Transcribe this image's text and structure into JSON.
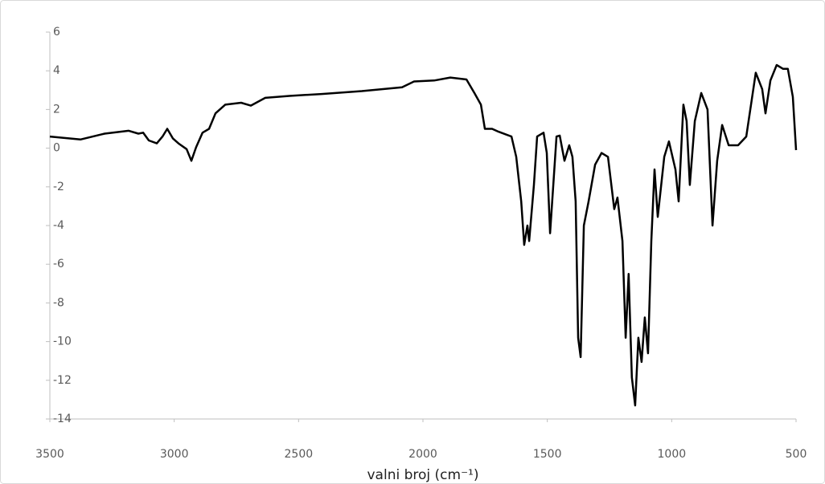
{
  "chart_data": {
    "type": "line",
    "x_label": "valni broj (cm⁻¹)",
    "x": [
      3500,
      3377,
      3280,
      3183,
      3144,
      3125,
      3102,
      3070,
      3047,
      3028,
      3005,
      2983,
      2950,
      2931,
      2912,
      2886,
      2860,
      2834,
      2795,
      2731,
      2692,
      2634,
      2537,
      2407,
      2246,
      2084,
      2036,
      1955,
      1890,
      1825,
      1793,
      1767,
      1751,
      1722,
      1696,
      1644,
      1625,
      1605,
      1593,
      1580,
      1573,
      1554,
      1541,
      1515,
      1502,
      1489,
      1476,
      1463,
      1450,
      1431,
      1412,
      1399,
      1386,
      1376,
      1366,
      1353,
      1334,
      1308,
      1282,
      1256,
      1231,
      1218,
      1198,
      1185,
      1173,
      1160,
      1147,
      1134,
      1121,
      1108,
      1095,
      1082,
      1069,
      1056,
      1030,
      1011,
      985,
      972,
      953,
      940,
      927,
      907,
      881,
      856,
      836,
      817,
      797,
      771,
      733,
      700,
      662,
      636,
      623,
      603,
      578,
      552,
      533,
      513,
      500
    ],
    "series": [
      {
        "color": "#000000",
        "values": [
          0.6,
          0.45,
          0.75,
          0.9,
          0.75,
          0.8,
          0.4,
          0.25,
          0.6,
          1.0,
          0.5,
          0.25,
          -0.05,
          -0.65,
          0.05,
          0.8,
          1.0,
          1.8,
          2.25,
          2.35,
          2.2,
          2.6,
          2.7,
          2.8,
          2.95,
          3.15,
          3.45,
          3.5,
          3.65,
          3.55,
          2.85,
          2.25,
          1.0,
          1.0,
          0.85,
          0.6,
          -0.45,
          -2.75,
          -5.0,
          -4.0,
          -4.8,
          -1.9,
          0.6,
          0.8,
          -0.25,
          -4.4,
          -1.9,
          0.6,
          0.65,
          -0.65,
          0.15,
          -0.45,
          -2.75,
          -9.8,
          -10.8,
          -4.0,
          -2.75,
          -0.85,
          -0.25,
          -0.45,
          -3.15,
          -2.55,
          -4.8,
          -9.8,
          -6.5,
          -11.85,
          -13.3,
          -9.8,
          -11.05,
          -8.75,
          -10.6,
          -4.8,
          -1.1,
          -3.55,
          -0.45,
          0.35,
          -1.1,
          -2.75,
          2.25,
          1.4,
          -1.9,
          1.4,
          2.85,
          2.0,
          -4.0,
          -0.65,
          1.2,
          0.15,
          0.15,
          0.6,
          3.9,
          3.05,
          1.8,
          3.5,
          4.3,
          4.1,
          4.1,
          2.65,
          -0.1
        ]
      }
    ],
    "xlim": [
      3500,
      500
    ],
    "xticks": [
      3500,
      3000,
      2500,
      2000,
      1500,
      1000,
      500
    ],
    "ylim": [
      -14,
      6
    ],
    "yticks": [
      -14,
      -12,
      -10,
      -8,
      -6,
      -4,
      -2,
      0,
      2,
      4,
      6
    ]
  }
}
